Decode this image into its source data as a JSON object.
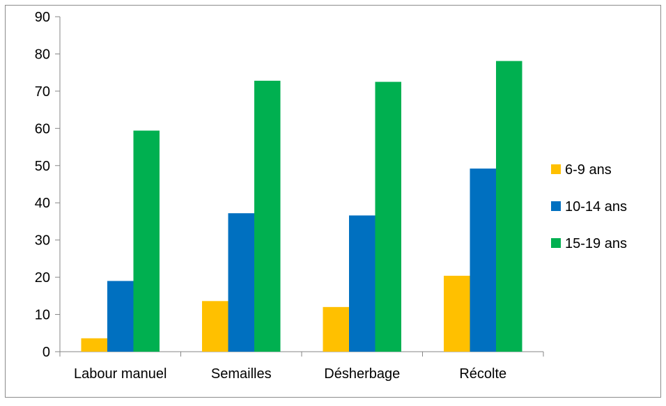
{
  "chart_data": {
    "type": "bar",
    "title": "",
    "xlabel": "",
    "ylabel": "",
    "categories": [
      "Labour manuel",
      "Semailles",
      "Désherbage",
      "Récolte"
    ],
    "series": [
      {
        "name": "6-9 ans",
        "color": "#FFC000",
        "values": [
          3.6,
          13.6,
          12.0,
          20.4
        ]
      },
      {
        "name": "10-14 ans",
        "color": "#0070C0",
        "values": [
          19.0,
          37.2,
          36.6,
          49.2
        ]
      },
      {
        "name": "15-19 ans",
        "color": "#00B050",
        "values": [
          59.4,
          72.8,
          72.5,
          78.1
        ]
      }
    ],
    "ylim": [
      0,
      90
    ],
    "yticks": [
      "0",
      "10",
      "20",
      "30",
      "40",
      "50",
      "60",
      "70",
      "80",
      "90"
    ],
    "grid": false,
    "legend_position": "right"
  }
}
